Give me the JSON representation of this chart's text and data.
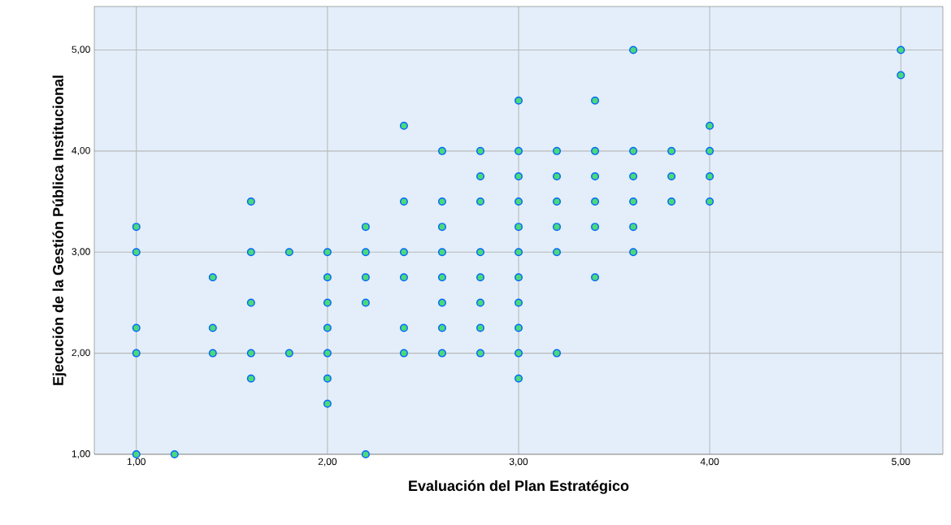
{
  "chart_data": {
    "type": "scatter",
    "xlabel": "Evaluación del Plan Estratégico",
    "ylabel": "Ejecución de la Gestión Pública Institucional",
    "xlim": [
      0.78,
      5.22
    ],
    "ylim": [
      1,
      5.43
    ],
    "xticks": [
      {
        "value": 1,
        "label": "1,00"
      },
      {
        "value": 2,
        "label": "2,00"
      },
      {
        "value": 3,
        "label": "3,00"
      },
      {
        "value": 4,
        "label": "4,00"
      },
      {
        "value": 5,
        "label": "5,00"
      }
    ],
    "yticks": [
      {
        "value": 1,
        "label": "1,00"
      },
      {
        "value": 2,
        "label": "2,00"
      },
      {
        "value": 3,
        "label": "3,00"
      },
      {
        "value": 4,
        "label": "4,00"
      },
      {
        "value": 5,
        "label": "5,00"
      }
    ],
    "grid": true,
    "series": [
      {
        "color": "#4cd97a",
        "x": [
          1,
          1,
          1,
          1,
          1,
          1.2,
          1.4,
          1.4,
          1.4,
          1.6,
          1.6,
          1.6,
          1.6,
          1.6,
          1.8,
          1.8,
          2,
          2,
          2,
          2,
          2,
          2,
          2,
          2.2,
          2.2,
          2.2,
          2.2,
          2.2,
          2.4,
          2.4,
          2.4,
          2.4,
          2.4,
          2.4,
          2.6,
          2.6,
          2.6,
          2.6,
          2.6,
          2.6,
          2.6,
          2.6,
          2.8,
          2.8,
          2.8,
          2.8,
          2.8,
          2.8,
          2.8,
          2.8,
          3,
          3,
          3,
          3,
          3,
          3,
          3,
          3,
          3,
          3,
          3,
          3.2,
          3.2,
          3.2,
          3.2,
          3.2,
          3.2,
          3.4,
          3.4,
          3.4,
          3.4,
          3.4,
          3.4,
          3.6,
          3.6,
          3.6,
          3.6,
          3.6,
          3.6,
          3.8,
          3.8,
          3.8,
          4,
          4,
          4,
          4,
          5,
          5
        ],
        "values": [
          3.25,
          3,
          2.25,
          2,
          1,
          1,
          2.75,
          2.25,
          2,
          3.5,
          3,
          2.5,
          2,
          1.75,
          3,
          2,
          3,
          2.75,
          2.5,
          2.25,
          2,
          1.75,
          1.5,
          3.25,
          3,
          2.75,
          2.5,
          1,
          4.25,
          3.5,
          3,
          2.75,
          2.25,
          2,
          4,
          3.5,
          3.25,
          3,
          2.75,
          2.5,
          2.25,
          2,
          4,
          3.75,
          3.5,
          3,
          2.75,
          2.5,
          2.25,
          2,
          4.5,
          4,
          3.75,
          3.5,
          3.25,
          3,
          2.75,
          2.5,
          2.25,
          2,
          1.75,
          4,
          3.75,
          3.5,
          3.25,
          3,
          2,
          4.5,
          4,
          3.75,
          3.5,
          3.25,
          2.75,
          5,
          4,
          3.75,
          3.5,
          3.25,
          3,
          4,
          3.75,
          3.5,
          4.25,
          4,
          3.75,
          3.5,
          5,
          4.75
        ]
      }
    ]
  }
}
